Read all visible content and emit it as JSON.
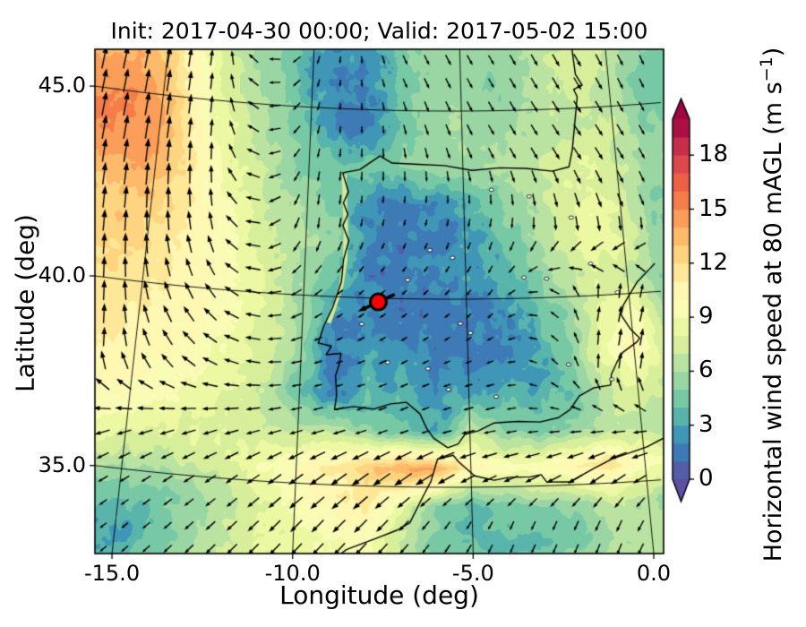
{
  "title": "Init: 2017-04-30 00:00; Valid: 2017-05-02 15:00",
  "axes": {
    "xlabel": "Longitude (deg)",
    "ylabel": "Latitude (deg)",
    "x_ticks": [
      {
        "label": "-15.0",
        "lon": -15
      },
      {
        "label": "-10.0",
        "lon": -10
      },
      {
        "label": "-5.0",
        "lon": -5
      },
      {
        "label": "0.0",
        "lon": 0
      }
    ],
    "y_ticks": [
      {
        "label": "45.0",
        "lat": 45
      },
      {
        "label": "40.0",
        "lat": 40
      },
      {
        "label": "35.0",
        "lat": 35
      }
    ]
  },
  "colorbar": {
    "title_main": "Horizontal wind speed at 80 mAGL (m s",
    "title_sup": "−1",
    "title_close": ")",
    "ticks": [
      18,
      15,
      12,
      9,
      6,
      3,
      0
    ],
    "vmin": 0,
    "vmax": 20,
    "band_step": 1,
    "extend": "both",
    "colormap_name": "Spectral_r",
    "colormap": [
      [
        0.0,
        "#5e4fa2"
      ],
      [
        0.1,
        "#3288bd"
      ],
      [
        0.2,
        "#66c2a5"
      ],
      [
        0.3,
        "#abdda4"
      ],
      [
        0.4,
        "#e6f598"
      ],
      [
        0.5,
        "#ffffbf"
      ],
      [
        0.6,
        "#fee08b"
      ],
      [
        0.7,
        "#fdae61"
      ],
      [
        0.8,
        "#f46d43"
      ],
      [
        0.9,
        "#d53e4f"
      ],
      [
        1.0,
        "#9e0142"
      ]
    ]
  },
  "chart_data": {
    "type": "heatmap",
    "units": "m s-1",
    "title": "Init: 2017-04-30 00:00; Valid: 2017-05-02 15:00",
    "xlabel": "Longitude (deg)",
    "ylabel": "Latitude (deg)",
    "extent": {
      "lon_min": -15.5,
      "lon_max": 0.3,
      "lat_min": 32.7,
      "lat_max": 46.0
    },
    "graticule": {
      "meridians": [
        -15,
        -10,
        -5,
        0
      ],
      "parallels": [
        35,
        40,
        45
      ]
    },
    "lon_nodes": [
      -16,
      -15,
      -14,
      -13,
      -12,
      -11,
      -10,
      -9,
      -8,
      -7,
      -6,
      -5,
      -4,
      -3,
      -2,
      -1,
      0,
      1
    ],
    "lat_nodes": [
      46.5,
      45.5,
      44.5,
      43.5,
      42.5,
      41.5,
      40.5,
      39.5,
      38.5,
      37.5,
      36.5,
      35.5,
      34.5,
      33.5,
      32.5,
      31.5
    ],
    "wind_speed": [
      [
        13.5,
        12,
        9.5,
        7.5,
        6,
        5,
        3.5,
        2,
        3,
        4.5,
        5.5,
        5.5,
        5,
        6,
        7,
        7.5,
        7,
        5
      ],
      [
        14.5,
        13.5,
        10.5,
        8,
        6.5,
        5,
        3,
        1.5,
        2,
        4.5,
        5.5,
        5.5,
        5,
        6,
        7,
        7.5,
        6.5,
        4.5
      ],
      [
        15,
        14,
        11,
        8.5,
        7,
        5.5,
        4,
        2,
        2,
        4.5,
        5.5,
        6,
        5.5,
        6,
        6.5,
        7,
        7,
        5
      ],
      [
        14.5,
        14.5,
        11.5,
        9,
        7.5,
        6,
        4.5,
        4,
        4.5,
        5,
        5.5,
        5.5,
        6,
        6.5,
        7.5,
        8,
        7,
        6
      ],
      [
        13,
        13,
        11.5,
        9.5,
        8,
        6.5,
        5.5,
        4.5,
        2,
        1.5,
        2,
        3,
        4.5,
        6,
        7.5,
        8.5,
        7.5,
        5
      ],
      [
        12.5,
        12,
        11,
        10,
        8.5,
        7,
        6,
        5,
        2,
        1.5,
        2,
        2.5,
        4,
        5.5,
        7,
        8.5,
        8,
        5.5
      ],
      [
        12,
        11.5,
        11,
        10,
        9,
        7.5,
        5.5,
        4,
        1.5,
        1.5,
        2,
        2.5,
        3,
        4.5,
        6.5,
        7.5,
        7,
        5
      ],
      [
        11.5,
        11,
        10.5,
        10,
        9,
        7.5,
        5.5,
        2,
        2,
        1.5,
        1.5,
        1.5,
        2,
        3.5,
        5,
        8,
        9.5,
        6.5
      ],
      [
        11,
        10.5,
        10,
        9.5,
        8.5,
        7.5,
        5.5,
        1.5,
        3,
        2.5,
        2,
        1.5,
        2,
        3,
        4.5,
        8.5,
        10.5,
        7
      ],
      [
        10.5,
        10,
        9.5,
        9,
        8,
        7,
        4,
        1.5,
        3.5,
        3.5,
        2.5,
        3,
        3.5,
        3,
        4,
        6.5,
        8,
        6.5
      ],
      [
        9.5,
        9,
        8.5,
        8,
        7.5,
        7,
        6.5,
        6.5,
        5,
        4,
        2.5,
        7,
        5,
        4.5,
        5,
        6.5,
        6.5,
        6
      ],
      [
        7.5,
        7,
        7,
        7.5,
        8,
        9,
        10,
        11,
        12.5,
        14,
        14.5,
        10.5,
        9.5,
        10,
        11,
        12,
        9.5,
        8.5
      ],
      [
        5,
        4.5,
        4.5,
        5.5,
        6.5,
        8,
        9.5,
        10.5,
        11,
        8.5,
        5,
        3.5,
        4.5,
        5,
        5.5,
        7,
        6,
        5.5
      ],
      [
        3.5,
        3,
        4,
        5.5,
        7,
        8,
        8.5,
        9,
        9.5,
        6.5,
        4.5,
        4,
        3.5,
        4,
        4.5,
        6,
        6.5,
        6
      ],
      [
        3.5,
        3.5,
        5,
        6,
        7.5,
        8.5,
        9,
        9.5,
        9,
        7,
        5.5,
        5.5,
        6,
        6.5,
        6,
        6.5,
        7,
        7
      ],
      [
        4,
        4.5,
        5.5,
        6.5,
        7.5,
        8.5,
        9,
        9.5,
        9,
        7.5,
        6.5,
        6.5,
        7,
        7.5,
        7,
        7,
        7.5,
        7.5
      ]
    ],
    "arrow_dirs": {
      "lon_nodes": [
        -16,
        -13,
        -10,
        -7,
        -4,
        -1,
        1
      ],
      "lat_nodes": [
        46,
        44,
        42,
        40,
        38,
        36.3,
        35.3,
        34,
        31.5
      ],
      "angles_deg_ccw_from_east": [
        [
          78,
          84,
          250,
          295,
          300,
          300,
          295
        ],
        [
          80,
          86,
          255,
          280,
          300,
          305,
          300
        ],
        [
          84,
          98,
          265,
          255,
          260,
          285,
          290
        ],
        [
          88,
          120,
          215,
          220,
          230,
          80,
          75
        ],
        [
          86,
          150,
          190,
          205,
          195,
          85,
          80
        ],
        [
          190,
          195,
          195,
          200,
          190,
          190,
          185
        ],
        [
          205,
          210,
          215,
          215,
          200,
          210,
          200
        ],
        [
          215,
          220,
          225,
          225,
          245,
          245,
          235
        ],
        [
          225,
          230,
          230,
          235,
          250,
          255,
          245
        ]
      ]
    },
    "marker": {
      "lon": -7.7,
      "lat": 39.9,
      "color": "#ff0000",
      "edge": "#000000",
      "arrow_dir_deg": 205
    }
  },
  "map": {
    "coastline_iberia_france": [
      [
        -1.15,
        46.6
      ],
      [
        -1.1,
        45.9
      ],
      [
        -0.9,
        45.6
      ],
      [
        -1.2,
        45.5
      ],
      [
        -1.1,
        45.3
      ],
      [
        -1.25,
        44.6
      ],
      [
        -1.4,
        43.9
      ],
      [
        -1.55,
        43.45
      ],
      [
        -2.1,
        43.35
      ],
      [
        -2.95,
        43.45
      ],
      [
        -3.8,
        43.48
      ],
      [
        -4.7,
        43.42
      ],
      [
        -5.6,
        43.55
      ],
      [
        -6.6,
        43.58
      ],
      [
        -7.3,
        43.6
      ],
      [
        -7.7,
        43.78
      ],
      [
        -8.35,
        43.4
      ],
      [
        -8.9,
        43.3
      ],
      [
        -8.7,
        42.8
      ],
      [
        -8.85,
        42.5
      ],
      [
        -8.7,
        42.2
      ],
      [
        -8.85,
        41.9
      ],
      [
        -8.65,
        41.5
      ],
      [
        -8.8,
        41.0
      ],
      [
        -8.85,
        40.4
      ],
      [
        -9.1,
        39.7
      ],
      [
        -9.35,
        39.2
      ],
      [
        -9.5,
        38.75
      ],
      [
        -9.1,
        38.68
      ],
      [
        -9.25,
        38.45
      ],
      [
        -8.8,
        38.5
      ],
      [
        -8.85,
        38.2
      ],
      [
        -8.95,
        37.9
      ],
      [
        -8.9,
        37.4
      ],
      [
        -8.95,
        37.0
      ],
      [
        -8.4,
        37.1
      ],
      [
        -7.8,
        37.05
      ],
      [
        -7.3,
        37.2
      ],
      [
        -6.85,
        37.25
      ],
      [
        -6.45,
        36.95
      ],
      [
        -6.25,
        36.55
      ],
      [
        -6.05,
        36.3
      ],
      [
        -5.65,
        36.05
      ],
      [
        -5.35,
        36.15
      ],
      [
        -5.15,
        36.4
      ],
      [
        -4.75,
        36.5
      ],
      [
        -4.3,
        36.7
      ],
      [
        -3.6,
        36.73
      ],
      [
        -2.95,
        36.7
      ],
      [
        -2.4,
        36.8
      ],
      [
        -2.05,
        37.0
      ],
      [
        -1.75,
        37.35
      ],
      [
        -1.3,
        37.55
      ],
      [
        -0.8,
        37.6
      ],
      [
        -0.75,
        37.88
      ],
      [
        -0.55,
        38.2
      ],
      [
        -0.35,
        38.45
      ],
      [
        0.1,
        38.7
      ],
      [
        0.2,
        38.8
      ],
      [
        -0.05,
        39.05
      ],
      [
        -0.3,
        39.45
      ],
      [
        -0.2,
        39.7
      ],
      [
        0.0,
        39.95
      ],
      [
        0.3,
        40.3
      ],
      [
        0.7,
        40.6
      ],
      [
        0.9,
        40.75
      ]
    ],
    "coastline_africa": [
      [
        -9.4,
        32.3
      ],
      [
        -8.9,
        33.0
      ],
      [
        -8.5,
        33.3
      ],
      [
        -7.6,
        33.65
      ],
      [
        -7.1,
        33.85
      ],
      [
        -6.75,
        34.05
      ],
      [
        -6.35,
        34.8
      ],
      [
        -6.15,
        35.15
      ],
      [
        -5.95,
        35.75
      ],
      [
        -5.5,
        35.85
      ],
      [
        -5.35,
        35.68
      ],
      [
        -4.9,
        35.3
      ],
      [
        -4.35,
        35.18
      ],
      [
        -3.9,
        35.25
      ],
      [
        -3.3,
        35.25
      ],
      [
        -3.0,
        35.3
      ],
      [
        -2.85,
        35.1
      ],
      [
        -2.2,
        35.08
      ],
      [
        -1.5,
        35.4
      ],
      [
        -0.9,
        35.65
      ],
      [
        -0.5,
        35.75
      ],
      [
        0.1,
        35.9
      ],
      [
        0.6,
        36.1
      ],
      [
        1.0,
        36.4
      ]
    ],
    "coastal_glow": [
      [
        -8.85,
        43.25
      ],
      [
        -8.8,
        42.4
      ],
      [
        -8.75,
        41.8
      ],
      [
        -8.75,
        41.0
      ],
      [
        -8.85,
        40.3
      ],
      [
        -9.2,
        39.3
      ]
    ],
    "glow_color": "#d6e896",
    "lakes": [
      [
        -6.1,
        41.3
      ],
      [
        -5.4,
        41.1
      ],
      [
        -6.8,
        40.5
      ],
      [
        -2.9,
        42.7
      ],
      [
        -4.1,
        42.9
      ],
      [
        -1.6,
        42.1
      ],
      [
        -5.2,
        39.35
      ],
      [
        -4.9,
        39.1
      ],
      [
        -2.5,
        40.5
      ],
      [
        -3.2,
        40.55
      ],
      [
        -1.1,
        40.85
      ],
      [
        -7.4,
        38.3
      ],
      [
        -6.2,
        38.15
      ],
      [
        -2.0,
        38.2
      ],
      [
        -0.75,
        37.75
      ],
      [
        -4.2,
        37.4
      ],
      [
        -0.35,
        40.05
      ],
      [
        -8.2,
        39.3
      ],
      [
        -5.6,
        37.6
      ]
    ]
  },
  "colors": {
    "land_sea_outline": "#000000",
    "arrow": "#000000",
    "frame": "#000000"
  }
}
